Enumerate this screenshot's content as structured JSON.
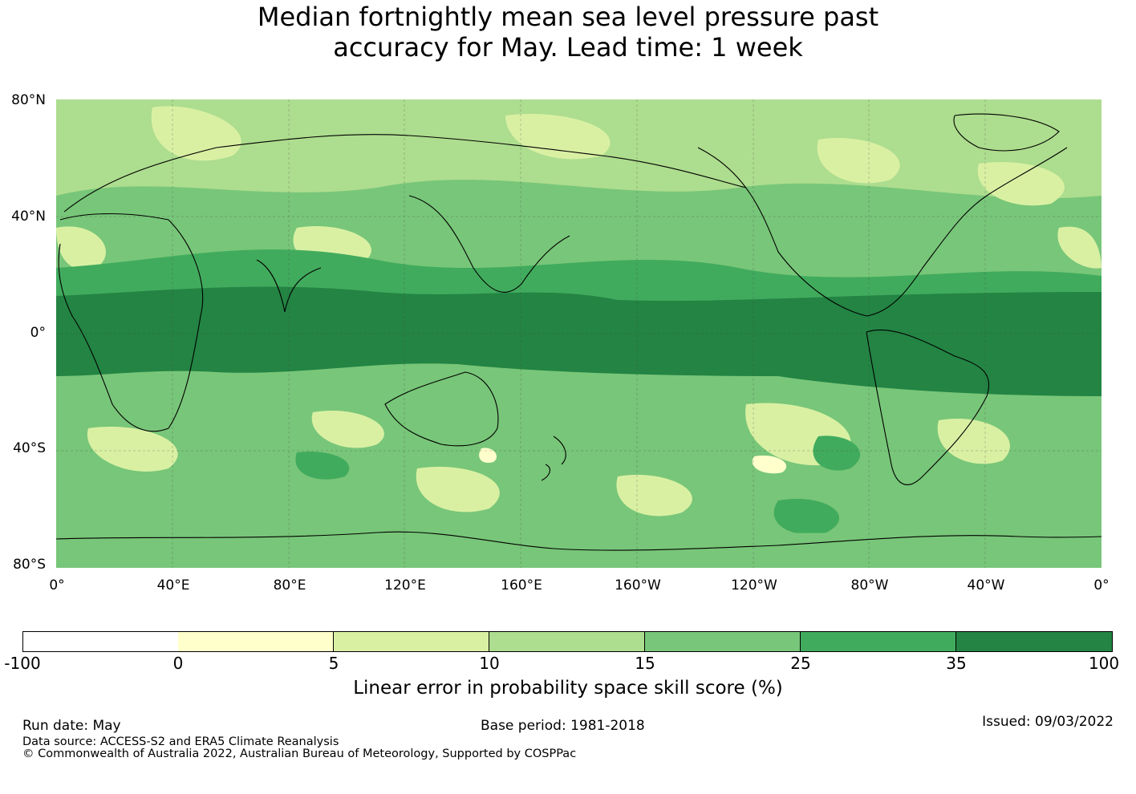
{
  "title": {
    "line1": "Median fortnightly mean sea level pressure past",
    "line2": "accuracy for May. Lead time: 1 week"
  },
  "map": {
    "lat_labels": [
      "80°N",
      "40°N",
      "0°",
      "40°S",
      "80°S"
    ],
    "lon_labels": [
      "0°",
      "40°E",
      "80°E",
      "120°E",
      "160°E",
      "160°W",
      "120°W",
      "80°W",
      "40°W",
      "0°"
    ]
  },
  "colorbar": {
    "ticks": [
      "-100",
      "0",
      "5",
      "10",
      "15",
      "25",
      "35",
      "100"
    ],
    "colors": [
      "#ffffff",
      "#ffffcc",
      "#d9f0a3",
      "#addd8e",
      "#78c679",
      "#41ab5d",
      "#238443"
    ],
    "label": "Linear error in probability space skill score (%)"
  },
  "footer": {
    "run_date": "Run date: May",
    "base_period": "Base period: 1981-2018",
    "issued": "Issued: 09/03/2022",
    "data_source": "Data source: ACCESS-S2 and ERA5 Climate Reanalysis",
    "copyright": "© Commonwealth of Australia 2022, Australian Bureau of Meteorology, Supported by COSPPac"
  }
}
